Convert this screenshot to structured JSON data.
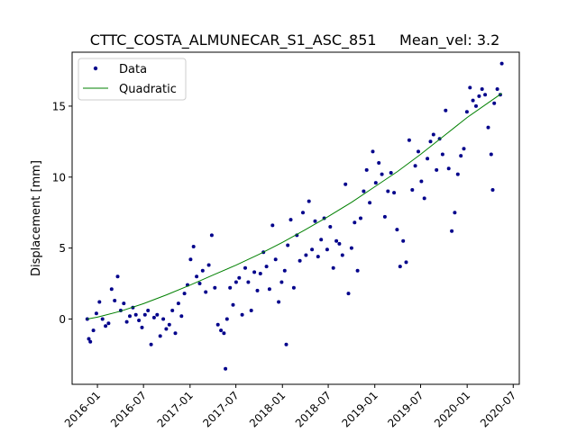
{
  "chart_data": {
    "type": "scatter",
    "title": "CTTC_COSTA_ALMUNECAR_S1_ASC_851     Mean_vel: 3.2",
    "xlabel": "",
    "ylabel": "Displacement [mm]",
    "x_axis_type": "date",
    "xlim": [
      "2015-09-23",
      "2020-07-25"
    ],
    "ylim": [
      -4.6,
      18.8
    ],
    "x_ticks": [
      "2016-01",
      "2016-07",
      "2017-01",
      "2017-07",
      "2018-01",
      "2018-07",
      "2019-01",
      "2019-07",
      "2020-01",
      "2020-07"
    ],
    "y_ticks": [
      0,
      5,
      10,
      15
    ],
    "grid": false,
    "legend": {
      "position": "top-left",
      "entries": [
        "Data",
        "Quadratic"
      ]
    },
    "colors": {
      "data": "#00008b",
      "fit": "#008000"
    },
    "series": [
      {
        "name": "Data",
        "kind": "scatter",
        "points": [
          [
            "2015-11-22",
            0.0
          ],
          [
            "2015-11-28",
            -1.4
          ],
          [
            "2015-12-04",
            -1.6
          ],
          [
            "2015-12-16",
            -0.8
          ],
          [
            "2015-12-28",
            0.4
          ],
          [
            "2016-01-09",
            1.2
          ],
          [
            "2016-01-21",
            0.0
          ],
          [
            "2016-02-02",
            -0.5
          ],
          [
            "2016-02-14",
            -0.3
          ],
          [
            "2016-02-26",
            2.1
          ],
          [
            "2016-03-09",
            1.3
          ],
          [
            "2016-03-21",
            3.0
          ],
          [
            "2016-04-02",
            0.6
          ],
          [
            "2016-04-14",
            1.1
          ],
          [
            "2016-04-26",
            -0.2
          ],
          [
            "2016-05-08",
            0.2
          ],
          [
            "2016-05-20",
            0.8
          ],
          [
            "2016-06-01",
            0.3
          ],
          [
            "2016-06-13",
            -0.1
          ],
          [
            "2016-06-25",
            -0.6
          ],
          [
            "2016-07-07",
            0.3
          ],
          [
            "2016-07-19",
            0.6
          ],
          [
            "2016-07-31",
            -1.8
          ],
          [
            "2016-08-12",
            0.1
          ],
          [
            "2016-08-24",
            0.3
          ],
          [
            "2016-09-05",
            -1.2
          ],
          [
            "2016-09-17",
            0.0
          ],
          [
            "2016-09-29",
            -0.7
          ],
          [
            "2016-10-11",
            -0.4
          ],
          [
            "2016-10-23",
            0.6
          ],
          [
            "2016-11-04",
            -1.0
          ],
          [
            "2016-11-16",
            1.1
          ],
          [
            "2016-11-28",
            0.2
          ],
          [
            "2016-12-10",
            1.8
          ],
          [
            "2016-12-22",
            2.4
          ],
          [
            "2017-01-03",
            4.2
          ],
          [
            "2017-01-15",
            5.1
          ],
          [
            "2017-01-27",
            3.0
          ],
          [
            "2017-02-08",
            2.5
          ],
          [
            "2017-02-20",
            3.4
          ],
          [
            "2017-03-04",
            1.9
          ],
          [
            "2017-03-16",
            3.8
          ],
          [
            "2017-03-28",
            5.9
          ],
          [
            "2017-04-09",
            2.2
          ],
          [
            "2017-04-21",
            -0.4
          ],
          [
            "2017-05-03",
            -0.8
          ],
          [
            "2017-05-15",
            -1.0
          ],
          [
            "2017-05-21",
            -3.5
          ],
          [
            "2017-05-27",
            0.0
          ],
          [
            "2017-06-08",
            2.2
          ],
          [
            "2017-06-20",
            1.0
          ],
          [
            "2017-07-02",
            2.6
          ],
          [
            "2017-07-14",
            2.9
          ],
          [
            "2017-07-26",
            0.3
          ],
          [
            "2017-08-07",
            3.6
          ],
          [
            "2017-08-19",
            2.6
          ],
          [
            "2017-08-31",
            0.6
          ],
          [
            "2017-09-12",
            3.3
          ],
          [
            "2017-09-24",
            2.0
          ],
          [
            "2017-10-06",
            3.2
          ],
          [
            "2017-10-18",
            4.7
          ],
          [
            "2017-10-30",
            3.7
          ],
          [
            "2017-11-11",
            2.1
          ],
          [
            "2017-11-23",
            6.6
          ],
          [
            "2017-12-05",
            4.2
          ],
          [
            "2017-12-17",
            1.2
          ],
          [
            "2017-12-29",
            2.6
          ],
          [
            "2018-01-10",
            3.4
          ],
          [
            "2018-01-16",
            -1.8
          ],
          [
            "2018-01-22",
            5.2
          ],
          [
            "2018-02-03",
            7.0
          ],
          [
            "2018-02-15",
            2.2
          ],
          [
            "2018-02-27",
            5.9
          ],
          [
            "2018-03-11",
            4.1
          ],
          [
            "2018-03-23",
            7.5
          ],
          [
            "2018-04-04",
            4.5
          ],
          [
            "2018-04-16",
            8.3
          ],
          [
            "2018-04-28",
            4.9
          ],
          [
            "2018-05-10",
            6.9
          ],
          [
            "2018-05-22",
            4.4
          ],
          [
            "2018-06-03",
            5.6
          ],
          [
            "2018-06-15",
            7.1
          ],
          [
            "2018-06-27",
            4.9
          ],
          [
            "2018-07-09",
            6.5
          ],
          [
            "2018-07-21",
            3.6
          ],
          [
            "2018-08-02",
            5.5
          ],
          [
            "2018-08-14",
            5.3
          ],
          [
            "2018-08-26",
            4.5
          ],
          [
            "2018-09-07",
            9.5
          ],
          [
            "2018-09-19",
            1.8
          ],
          [
            "2018-10-01",
            5.0
          ],
          [
            "2018-10-13",
            6.8
          ],
          [
            "2018-10-25",
            3.4
          ],
          [
            "2018-11-06",
            7.1
          ],
          [
            "2018-11-18",
            9.0
          ],
          [
            "2018-11-30",
            10.5
          ],
          [
            "2018-12-12",
            8.2
          ],
          [
            "2018-12-24",
            11.8
          ],
          [
            "2019-01-05",
            9.6
          ],
          [
            "2019-01-17",
            11.0
          ],
          [
            "2019-01-29",
            10.2
          ],
          [
            "2019-02-10",
            7.2
          ],
          [
            "2019-02-22",
            9.0
          ],
          [
            "2019-03-06",
            10.3
          ],
          [
            "2019-03-18",
            8.9
          ],
          [
            "2019-03-30",
            6.3
          ],
          [
            "2019-04-11",
            3.7
          ],
          [
            "2019-04-23",
            5.5
          ],
          [
            "2019-05-05",
            4.0
          ],
          [
            "2019-05-17",
            12.6
          ],
          [
            "2019-05-29",
            9.1
          ],
          [
            "2019-06-10",
            10.8
          ],
          [
            "2019-06-22",
            11.8
          ],
          [
            "2019-07-04",
            9.7
          ],
          [
            "2019-07-16",
            8.5
          ],
          [
            "2019-07-28",
            11.3
          ],
          [
            "2019-08-09",
            12.5
          ],
          [
            "2019-08-21",
            13.0
          ],
          [
            "2019-09-02",
            10.5
          ],
          [
            "2019-09-14",
            12.7
          ],
          [
            "2019-09-26",
            11.6
          ],
          [
            "2019-10-08",
            14.7
          ],
          [
            "2019-10-20",
            10.6
          ],
          [
            "2019-11-01",
            6.2
          ],
          [
            "2019-11-13",
            7.5
          ],
          [
            "2019-11-25",
            10.2
          ],
          [
            "2019-12-07",
            11.5
          ],
          [
            "2019-12-19",
            12.0
          ],
          [
            "2019-12-31",
            14.6
          ],
          [
            "2020-01-12",
            16.3
          ],
          [
            "2020-01-24",
            15.4
          ],
          [
            "2020-02-05",
            15.0
          ],
          [
            "2020-02-17",
            15.7
          ],
          [
            "2020-02-29",
            16.2
          ],
          [
            "2020-03-12",
            15.8
          ],
          [
            "2020-03-24",
            13.5
          ],
          [
            "2020-04-05",
            11.6
          ],
          [
            "2020-04-11",
            9.1
          ],
          [
            "2020-04-17",
            15.2
          ],
          [
            "2020-04-29",
            16.2
          ],
          [
            "2020-05-11",
            15.8
          ],
          [
            "2020-05-17",
            18.0
          ]
        ]
      },
      {
        "name": "Quadratic",
        "kind": "line",
        "points": [
          [
            "2015-11-22",
            0.0
          ],
          [
            "2016-01-01",
            0.13
          ],
          [
            "2016-04-01",
            0.55
          ],
          [
            "2016-07-01",
            1.08
          ],
          [
            "2016-10-01",
            1.71
          ],
          [
            "2017-01-01",
            2.39
          ],
          [
            "2017-04-01",
            3.09
          ],
          [
            "2017-07-01",
            3.79
          ],
          [
            "2017-10-01",
            4.56
          ],
          [
            "2018-01-01",
            5.4
          ],
          [
            "2018-04-01",
            6.29
          ],
          [
            "2018-07-01",
            7.22
          ],
          [
            "2018-10-01",
            8.22
          ],
          [
            "2019-01-01",
            9.32
          ],
          [
            "2019-04-01",
            10.4
          ],
          [
            "2019-07-01",
            11.6
          ],
          [
            "2019-10-01",
            12.9
          ],
          [
            "2020-01-01",
            14.2
          ],
          [
            "2020-05-17",
            15.9
          ]
        ]
      }
    ]
  }
}
